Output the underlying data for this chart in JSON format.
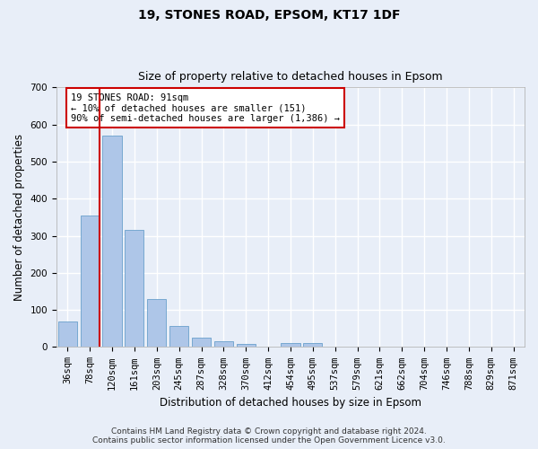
{
  "title": "19, STONES ROAD, EPSOM, KT17 1DF",
  "subtitle": "Size of property relative to detached houses in Epsom",
  "xlabel": "Distribution of detached houses by size in Epsom",
  "ylabel": "Number of detached properties",
  "bar_labels": [
    "36sqm",
    "78sqm",
    "120sqm",
    "161sqm",
    "203sqm",
    "245sqm",
    "287sqm",
    "328sqm",
    "370sqm",
    "412sqm",
    "454sqm",
    "495sqm",
    "537sqm",
    "579sqm",
    "621sqm",
    "662sqm",
    "704sqm",
    "746sqm",
    "788sqm",
    "829sqm",
    "871sqm"
  ],
  "bar_values": [
    70,
    355,
    570,
    315,
    130,
    57,
    25,
    15,
    8,
    0,
    10,
    10,
    0,
    0,
    0,
    0,
    0,
    0,
    0,
    0,
    0
  ],
  "bar_color": "#aec6e8",
  "bar_edge_color": "#6aa0cc",
  "vline_x_pos": 1.45,
  "vline_color": "#cc0000",
  "ylim": [
    0,
    700
  ],
  "yticks": [
    0,
    100,
    200,
    300,
    400,
    500,
    600,
    700
  ],
  "annotation_text": "19 STONES ROAD: 91sqm\n← 10% of detached houses are smaller (151)\n90% of semi-detached houses are larger (1,386) →",
  "annotation_box_color": "#ffffff",
  "annotation_box_edge": "#cc0000",
  "footer_text": "Contains HM Land Registry data © Crown copyright and database right 2024.\nContains public sector information licensed under the Open Government Licence v3.0.",
  "background_color": "#e8eef8",
  "grid_color": "#ffffff",
  "title_fontsize": 10,
  "subtitle_fontsize": 9,
  "axis_label_fontsize": 8.5,
  "tick_fontsize": 7.5,
  "annotation_fontsize": 7.5,
  "footer_fontsize": 6.5
}
